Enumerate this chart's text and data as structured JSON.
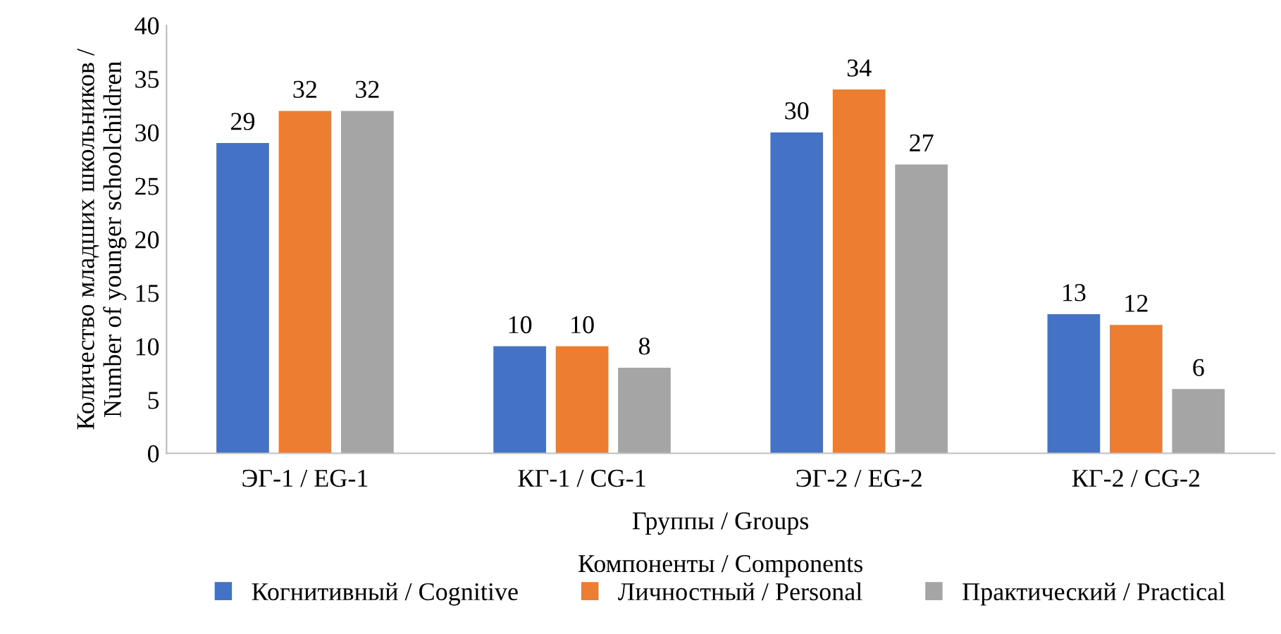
{
  "chart_data": {
    "type": "bar",
    "categories": [
      "ЭГ-1 / EG-1",
      "КГ-1 / CG-1",
      "ЭГ-2 / EG-2",
      "КГ-2 / CG-2"
    ],
    "series": [
      {
        "name": "Когнитивный / Cognitive",
        "color": "#4472c4",
        "values": [
          29,
          10,
          30,
          13
        ]
      },
      {
        "name": "Личностный / Personal",
        "color": "#ed7d31",
        "values": [
          32,
          10,
          34,
          12
        ]
      },
      {
        "name": "Практический / Practical",
        "color": "#a5a5a5",
        "values": [
          32,
          8,
          27,
          6
        ]
      }
    ],
    "xlabel": "Группы / Groups",
    "ylabel": "Количество младших школьников /\nNumber of younger schoolchildren",
    "legend_title": "Компоненты / Components",
    "legend": "bottom",
    "ylim": [
      0,
      40
    ],
    "yticks": [
      0,
      5,
      10,
      15,
      20,
      25,
      30,
      35,
      40
    ],
    "data_labels": true,
    "grid": false
  }
}
